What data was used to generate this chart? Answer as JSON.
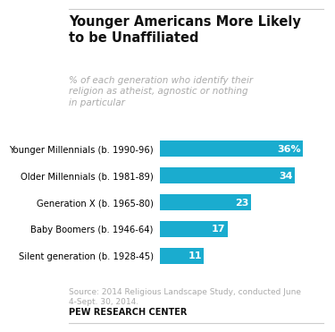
{
  "title": "Younger Americans More Likely\nto be Unaffiliated",
  "subtitle": "% of each generation who identify their\nreligion as atheist, agnostic or nothing\nin particular",
  "categories": [
    "Younger Millennials (b. 1990-96)",
    "Older Millennials (b. 1981-89)",
    "Generation X (b. 1965-80)",
    "Baby Boomers (b. 1946-64)",
    "Silent generation (b. 1928-45)"
  ],
  "values": [
    36,
    34,
    23,
    17,
    11
  ],
  "labels": [
    "36%",
    "34",
    "23",
    "17",
    "11"
  ],
  "bar_color": "#1aaccf",
  "text_color_inside": "#ffffff",
  "title_color": "#111111",
  "subtitle_color": "#aaaaaa",
  "source_text": "Source: 2014 Religious Landscape Study, conducted June\n4-Sept. 30, 2014.",
  "footer_text": "PEW RESEARCH CENTER",
  "background_color": "#ffffff",
  "xlim": [
    0,
    42
  ],
  "title_fontsize": 10.5,
  "subtitle_fontsize": 7.5,
  "bar_label_fontsize": 8,
  "ytick_fontsize": 7.2,
  "source_fontsize": 6.5,
  "footer_fontsize": 7.0
}
